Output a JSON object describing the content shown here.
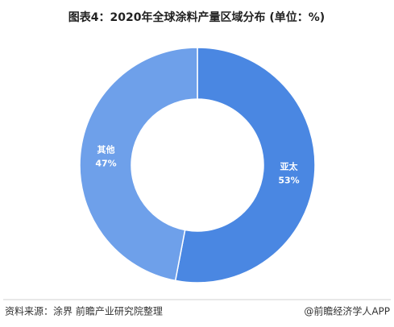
{
  "chart_data": {
    "type": "pie",
    "title": "图表4：2020年全球涂料产量区域分布 (单位：%)",
    "categories": [
      "亚太",
      "其他"
    ],
    "values": [
      53,
      47
    ],
    "value_labels": [
      "53%",
      "47%"
    ],
    "colors": [
      "#4a87e2",
      "#6ea0ea"
    ],
    "donut": true,
    "source": "资料来源：涂界 前瞻产业研究院整理",
    "credit": "@前瞻经济学人APP"
  }
}
